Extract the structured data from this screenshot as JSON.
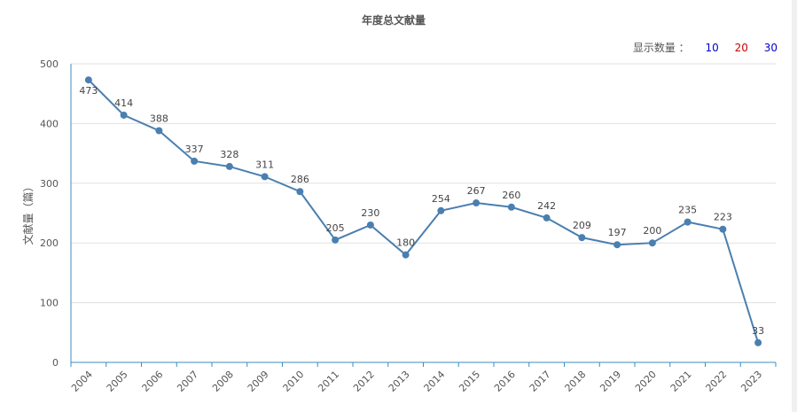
{
  "chart_title": "年度总文献量",
  "show_count": {
    "label": "显示数量 ：",
    "options": [
      {
        "value": "10",
        "color": "#0000cc"
      },
      {
        "value": "20",
        "color": "#cc0000"
      },
      {
        "value": "30",
        "color": "#0000cc"
      }
    ]
  },
  "colors": {
    "line": "#4a7fb0",
    "axis": "#3c8dbc",
    "grid": "#e0e0e0"
  },
  "chart_data": {
    "type": "line",
    "title": "年度总文献量",
    "xlabel": "",
    "ylabel": "文献量（篇）",
    "ylim": [
      0,
      500
    ],
    "yticks": [
      0,
      100,
      200,
      300,
      400,
      500
    ],
    "grid": true,
    "categories": [
      "2004",
      "2005",
      "2006",
      "2007",
      "2008",
      "2009",
      "2010",
      "2011",
      "2012",
      "2013",
      "2014",
      "2015",
      "2016",
      "2017",
      "2018",
      "2019",
      "2020",
      "2021",
      "2022",
      "2023"
    ],
    "series": [
      {
        "values": [
          473,
          414,
          388,
          337,
          328,
          311,
          286,
          205,
          230,
          180,
          254,
          267,
          260,
          242,
          209,
          197,
          200,
          235,
          223,
          33
        ]
      }
    ]
  }
}
